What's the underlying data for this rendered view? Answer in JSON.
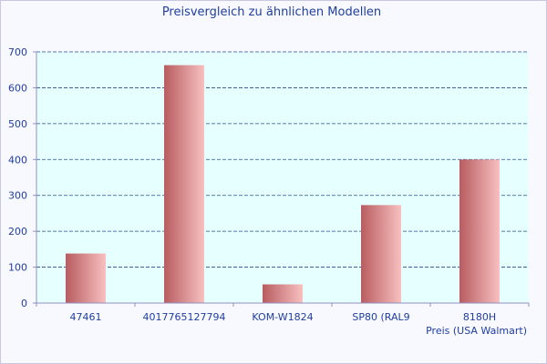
{
  "chart_data": {
    "type": "bar",
    "title": "Preisvergleich zu ähnlichen Modellen",
    "categories": [
      "47461",
      "4017765127794",
      "KOM-W1824",
      "SP80 (RAL9",
      "8180H"
    ],
    "series": [
      {
        "name": "Preis (USA Walmart)",
        "values": [
          138,
          663,
          52,
          273,
          400
        ]
      }
    ],
    "yticks": [
      0,
      100,
      200,
      300,
      400,
      500,
      600,
      700
    ],
    "ylim": [
      0,
      700
    ],
    "grid": true,
    "legend_position": "bottom-right",
    "colors": {
      "plot_background": "#e6ffff",
      "bar_dark": "#b85c60",
      "bar_light": "#f8c0c0",
      "grid": "#2a4a8a",
      "text": "#1f3fa0"
    }
  }
}
